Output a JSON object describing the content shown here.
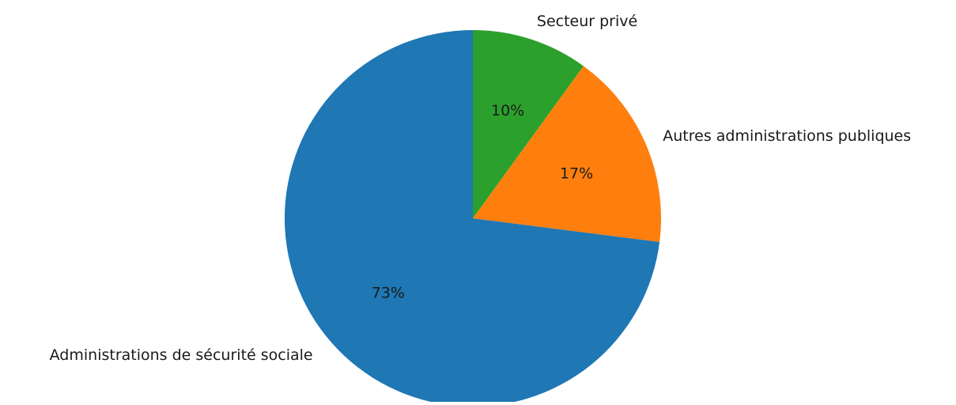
{
  "chart_data": {
    "type": "pie",
    "slices": [
      {
        "label": "Administrations de sécurité sociale",
        "value": 73,
        "pct_label": "73%",
        "color": "#1f77b4"
      },
      {
        "label": "Autres administrations publiques",
        "value": 17,
        "pct_label": "17%",
        "color": "#ff7f0e"
      },
      {
        "label": "Secteur privé",
        "value": 10,
        "pct_label": "10%",
        "color": "#2ca02c"
      }
    ],
    "start_angle_deg": 90,
    "direction": "counterclockwise",
    "legend": "none"
  }
}
